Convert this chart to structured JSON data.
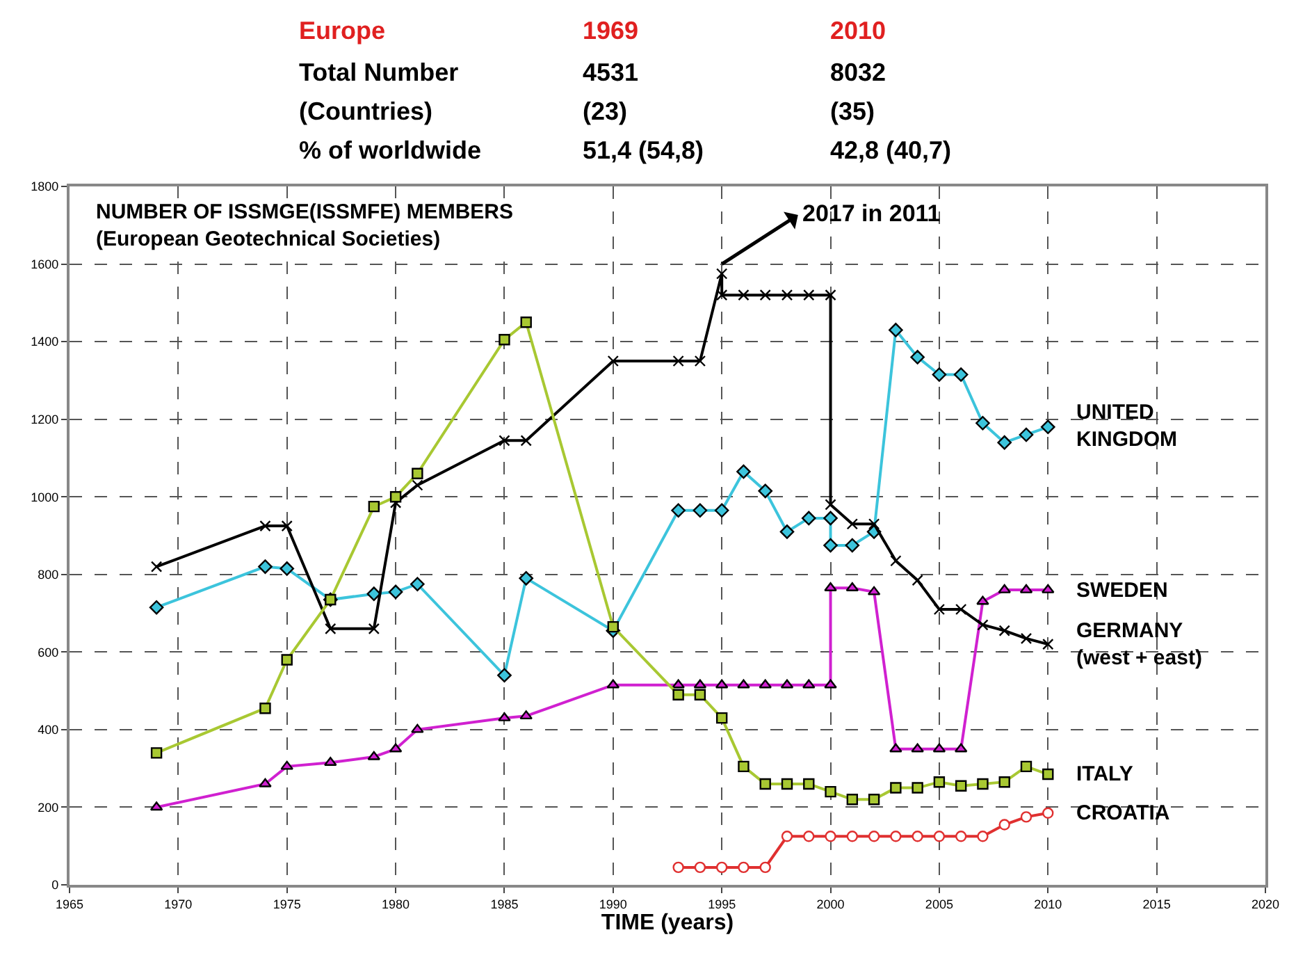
{
  "chart_data": {
    "type": "line",
    "title": "NUMBER OF ISSMGE(ISSMFE) MEMBERS\n(European Geotechnical Societies)",
    "xlabel": "TIME (years)",
    "xlim": [
      1965,
      2020
    ],
    "xticks": [
      1965,
      1970,
      1975,
      1980,
      1985,
      1990,
      1995,
      2000,
      2005,
      2010,
      2015,
      2020
    ],
    "ylim": [
      0,
      1800
    ],
    "yticks": [
      0,
      200,
      400,
      600,
      800,
      1000,
      1200,
      1400,
      1600,
      1800
    ],
    "grid": true,
    "legend": false,
    "line_style": "solid",
    "annotations": [
      "Europe",
      "1969",
      "2010",
      "Total Number",
      "4531",
      "8032",
      "(Countries)",
      "(23)",
      "(35)",
      "% of worldwide",
      "51,4 (54,8)",
      "42,8 (40,7)",
      {
        "text": "2017 in 2011",
        "x": 1995,
        "y": 1600
      }
    ],
    "series": [
      {
        "name": "UNITED\nKINGDOM",
        "color": "#3cc4dc",
        "marker": "diamond",
        "x": [
          1969,
          1974,
          1975,
          1977,
          1979,
          1980,
          1981,
          1985,
          1986,
          1990,
          1993,
          1994,
          1995,
          1996,
          1997,
          1998,
          1999,
          2000,
          2000,
          2001,
          2002,
          2003,
          2004,
          2005,
          2006,
          2007,
          2008,
          2009,
          2010
        ],
        "values": [
          715,
          820,
          815,
          735,
          750,
          755,
          775,
          540,
          790,
          655,
          965,
          965,
          965,
          1065,
          1015,
          910,
          945,
          945,
          875,
          875,
          910,
          1430,
          1360,
          1315,
          1315,
          1190,
          1140,
          1160,
          1180
        ]
      },
      {
        "name": "SWEDEN",
        "color": "#d020d0",
        "marker": "triangle",
        "x": [
          1969,
          1974,
          1975,
          1977,
          1979,
          1980,
          1981,
          1985,
          1986,
          1990,
          1993,
          1994,
          1995,
          1996,
          1997,
          1998,
          1999,
          2000,
          2000,
          2001,
          2002,
          2003,
          2004,
          2005,
          2006,
          2007,
          2008,
          2009,
          2010
        ],
        "values": [
          200,
          260,
          305,
          315,
          330,
          350,
          400,
          430,
          435,
          515,
          515,
          515,
          515,
          515,
          515,
          515,
          515,
          515,
          765,
          765,
          755,
          350,
          350,
          350,
          350,
          730,
          760,
          760,
          760
        ]
      },
      {
        "name": "GERMANY\n(west + east)",
        "color": "#000000",
        "marker": "cross",
        "x": [
          1969,
          1974,
          1975,
          1977,
          1979,
          1980,
          1981,
          1985,
          1986,
          1990,
          1993,
          1994,
          1995,
          1995,
          1996,
          1997,
          1998,
          1999,
          2000,
          2000,
          2001,
          2002,
          2003,
          2004,
          2005,
          2006,
          2007,
          2008,
          2009,
          2010
        ],
        "values": [
          820,
          925,
          925,
          660,
          660,
          985,
          1030,
          1145,
          1145,
          1350,
          1350,
          1350,
          1575,
          1520,
          1520,
          1520,
          1520,
          1520,
          1520,
          980,
          930,
          930,
          835,
          785,
          710,
          710,
          670,
          655,
          635,
          620
        ]
      },
      {
        "name": "ITALY",
        "color": "#a8c832",
        "marker": "square",
        "x": [
          1969,
          1974,
          1975,
          1977,
          1979,
          1980,
          1981,
          1985,
          1986,
          1990,
          1993,
          1994,
          1995,
          1996,
          1997,
          1998,
          1999,
          2000,
          2001,
          2002,
          2003,
          2004,
          2005,
          2006,
          2007,
          2008,
          2009,
          2010
        ],
        "values": [
          340,
          455,
          580,
          735,
          975,
          1000,
          1060,
          1405,
          1450,
          665,
          490,
          490,
          430,
          305,
          260,
          260,
          260,
          240,
          220,
          220,
          250,
          250,
          265,
          255,
          260,
          265,
          305,
          285
        ]
      },
      {
        "name": "CROATIA",
        "color": "#e03030",
        "marker": "circle",
        "x": [
          1993,
          1994,
          1995,
          1996,
          1997,
          1998,
          1999,
          2000,
          2001,
          2002,
          2003,
          2004,
          2005,
          2006,
          2007,
          2008,
          2009,
          2010
        ],
        "values": [
          45,
          45,
          45,
          45,
          45,
          125,
          125,
          125,
          125,
          125,
          125,
          125,
          125,
          125,
          125,
          155,
          175,
          185
        ]
      }
    ]
  }
}
